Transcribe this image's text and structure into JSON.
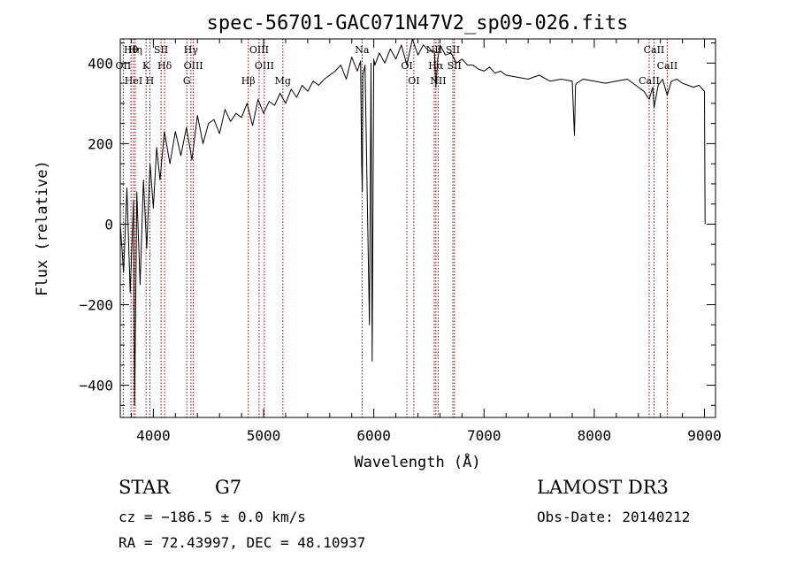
{
  "chart_data": {
    "type": "line",
    "title": "spec-56701-GAC071N47V2_sp09-026.fits",
    "xlabel": "Wavelength (Å)",
    "ylabel": "Flux (relative)",
    "xlim": [
      3700,
      9100
    ],
    "ylim": [
      -480,
      460
    ],
    "xticks": [
      4000,
      5000,
      6000,
      7000,
      8000,
      9000
    ],
    "yticks": [
      -400,
      -200,
      0,
      200,
      400
    ],
    "series": [
      {
        "name": "spectrum",
        "x": [
          3700,
          3730,
          3760,
          3790,
          3820,
          3830,
          3850,
          3880,
          3910,
          3940,
          3970,
          4000,
          4030,
          4060,
          4100,
          4150,
          4200,
          4250,
          4300,
          4350,
          4400,
          4450,
          4500,
          4550,
          4600,
          4650,
          4700,
          4750,
          4800,
          4850,
          4900,
          4950,
          5000,
          5050,
          5100,
          5150,
          5200,
          5250,
          5300,
          5350,
          5400,
          5450,
          5500,
          5550,
          5600,
          5650,
          5700,
          5750,
          5800,
          5850,
          5880,
          5890,
          5896,
          5900,
          5920,
          5960,
          5975,
          5985,
          6000,
          6010,
          6050,
          6100,
          6150,
          6200,
          6250,
          6300,
          6350,
          6400,
          6450,
          6500,
          6550,
          6563,
          6580,
          6600,
          6650,
          6700,
          6750,
          6800,
          6850,
          6900,
          6950,
          7000,
          7050,
          7100,
          7150,
          7200,
          7300,
          7400,
          7500,
          7600,
          7700,
          7800,
          7820,
          7830,
          7840,
          7900,
          8000,
          8100,
          8200,
          8300,
          8400,
          8450,
          8498,
          8530,
          8542,
          8580,
          8620,
          8662,
          8700,
          8750,
          8800,
          8850,
          8900,
          8950,
          9000,
          9005
        ],
        "values": [
          0,
          -120,
          90,
          -170,
          60,
          -450,
          80,
          -150,
          110,
          -60,
          150,
          40,
          190,
          110,
          230,
          150,
          230,
          170,
          240,
          160,
          270,
          200,
          250,
          260,
          225,
          285,
          255,
          275,
          265,
          300,
          245,
          310,
          275,
          305,
          295,
          325,
          300,
          335,
          315,
          345,
          330,
          355,
          345,
          360,
          370,
          380,
          395,
          360,
          415,
          380,
          405,
          150,
          80,
          370,
          395,
          -250,
          400,
          -340,
          410,
          395,
          425,
          400,
          435,
          410,
          445,
          395,
          460,
          420,
          445,
          430,
          430,
          340,
          410,
          445,
          420,
          425,
          400,
          410,
          395,
          395,
          385,
          380,
          390,
          375,
          380,
          370,
          365,
          360,
          370,
          355,
          360,
          355,
          220,
          345,
          350,
          360,
          355,
          350,
          355,
          360,
          340,
          330,
          310,
          340,
          290,
          345,
          360,
          320,
          355,
          360,
          350,
          345,
          340,
          345,
          330,
          0
        ],
        "color": "#000000"
      }
    ],
    "lines": [
      {
        "name": "Hθ",
        "x": 3797
      },
      {
        "name": "OII",
        "x": 3727
      },
      {
        "name": "HeI",
        "x": 3820
      },
      {
        "name": "Hη",
        "x": 3835
      },
      {
        "name": "K",
        "x": 3934
      },
      {
        "name": "H",
        "x": 3968
      },
      {
        "name": "SII",
        "x": 4070
      },
      {
        "name": "Hδ",
        "x": 4102
      },
      {
        "name": "G",
        "x": 4304
      },
      {
        "name": "Hγ",
        "x": 4341
      },
      {
        "name": "OIII",
        "x": 4363
      },
      {
        "name": "Hβ",
        "x": 4861
      },
      {
        "name": "OIII",
        "x": 4959
      },
      {
        "name": "OIII",
        "x": 5007
      },
      {
        "name": "Mg",
        "x": 5175
      },
      {
        "name": "Na",
        "x": 5893
      },
      {
        "name": "OI",
        "x": 6300
      },
      {
        "name": "OI",
        "x": 6363
      },
      {
        "name": "NII",
        "x": 6548
      },
      {
        "name": "Hα",
        "x": 6563
      },
      {
        "name": "NII",
        "x": 6584
      },
      {
        "name": "SII",
        "x": 6717
      },
      {
        "name": "SII",
        "x": 6731
      },
      {
        "name": "CaII",
        "x": 8498
      },
      {
        "name": "CaII",
        "x": 8542
      },
      {
        "name": "CaII",
        "x": 8662
      }
    ],
    "line_label_color": "#8b0000",
    "grid": false
  },
  "footer": {
    "object_class": "STAR",
    "subclass": "G7",
    "survey": "LAMOST DR3",
    "cz_text": "cz = −186.5 ± 0.0 km/s",
    "obs_date": "Obs-Date: 20140212",
    "coords": "RA =  72.43997, DEC =  48.10937"
  }
}
